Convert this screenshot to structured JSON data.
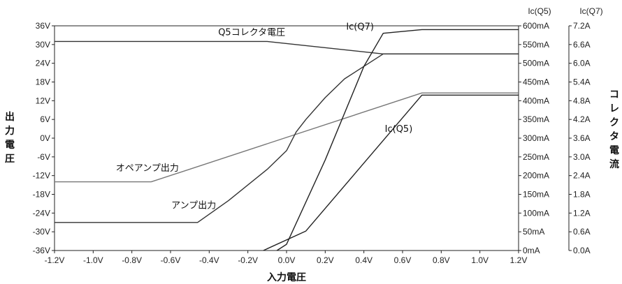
{
  "chart_data": {
    "type": "line",
    "xlabel": "入力電圧",
    "ylabel": "出力電圧",
    "y2label": "コレクタ電流",
    "xlim": [
      -1.2,
      1.2
    ],
    "ylim": [
      -36,
      36
    ],
    "y2lim_mA": [
      0,
      600
    ],
    "y3lim_A": [
      0,
      7.2
    ],
    "x_ticks": [
      "-1.2V",
      "-1.0V",
      "-0.8V",
      "-0.6V",
      "-0.4V",
      "-0.2V",
      "0.0V",
      "0.2V",
      "0.4V",
      "0.6V",
      "0.8V",
      "1.0V",
      "1.2V"
    ],
    "y_ticks": [
      "36V",
      "30V",
      "24V",
      "18V",
      "12V",
      "6V",
      "0V",
      "-6V",
      "-12V",
      "-18V",
      "-24V",
      "-30V",
      "-36V"
    ],
    "y2_ticks": [
      "600mA",
      "550mA",
      "500mA",
      "450mA",
      "400mA",
      "350mA",
      "300mA",
      "250mA",
      "200mA",
      "150mA",
      "100mA",
      "50mA",
      "0mA"
    ],
    "y3_ticks": [
      "7.2A",
      "6.6A",
      "6.0A",
      "5.4A",
      "4.8A",
      "4.2A",
      "3.6A",
      "3.0A",
      "2.4A",
      "1.8A",
      "1.2A",
      "0.6A",
      "0.0A"
    ],
    "y2_header": "Ic(Q5)",
    "y3_header": "Ic(Q7)",
    "grid": false,
    "series": [
      {
        "name": "Q5コレクタ電圧",
        "axis": "left",
        "color": "#333333",
        "x": [
          -1.2,
          -0.1,
          0.5,
          1.2
        ],
        "y": [
          31,
          31,
          27,
          27
        ]
      },
      {
        "name": "オペアンプ出力",
        "axis": "left",
        "color": "#777777",
        "x": [
          -1.2,
          -0.7,
          0.7,
          1.2
        ],
        "y": [
          -14,
          -14,
          14.5,
          14.5
        ]
      },
      {
        "name": "アンプ出力",
        "axis": "left",
        "color": "#333333",
        "x": [
          -1.2,
          -0.46,
          -0.3,
          -0.1,
          0.0,
          0.05,
          0.1,
          0.2,
          0.3,
          0.5,
          1.2
        ],
        "y": [
          -27,
          -27,
          -20,
          -10,
          -4,
          2,
          6,
          13,
          19,
          27,
          27
        ]
      },
      {
        "name": "Ic(Q7)",
        "axis": "y3",
        "color": "#222222",
        "x": [
          -0.05,
          0.0,
          0.2,
          0.4,
          0.5,
          0.7,
          1.2
        ],
        "y": [
          0.0,
          0.2,
          2.9,
          5.9,
          6.96,
          7.08,
          7.08
        ]
      },
      {
        "name": "Ic(Q5)",
        "axis": "y2",
        "color": "#222222",
        "x": [
          -0.12,
          0.1,
          0.7,
          1.2
        ],
        "y": [
          0,
          52,
          415,
          415
        ]
      }
    ],
    "annotations": [
      {
        "text": "Q5コレクタ電圧",
        "x": -0.18,
        "y": 33
      },
      {
        "text": "Ic(Q7)",
        "x": 0.38,
        "y": 34.8
      },
      {
        "text": "Ic(Q5)",
        "x": 0.58,
        "y": 2
      },
      {
        "text": "オペアンプ出力",
        "x": -0.72,
        "y": -10.5
      },
      {
        "text": "アンプ出力",
        "x": -0.48,
        "y": -22.5
      }
    ]
  }
}
